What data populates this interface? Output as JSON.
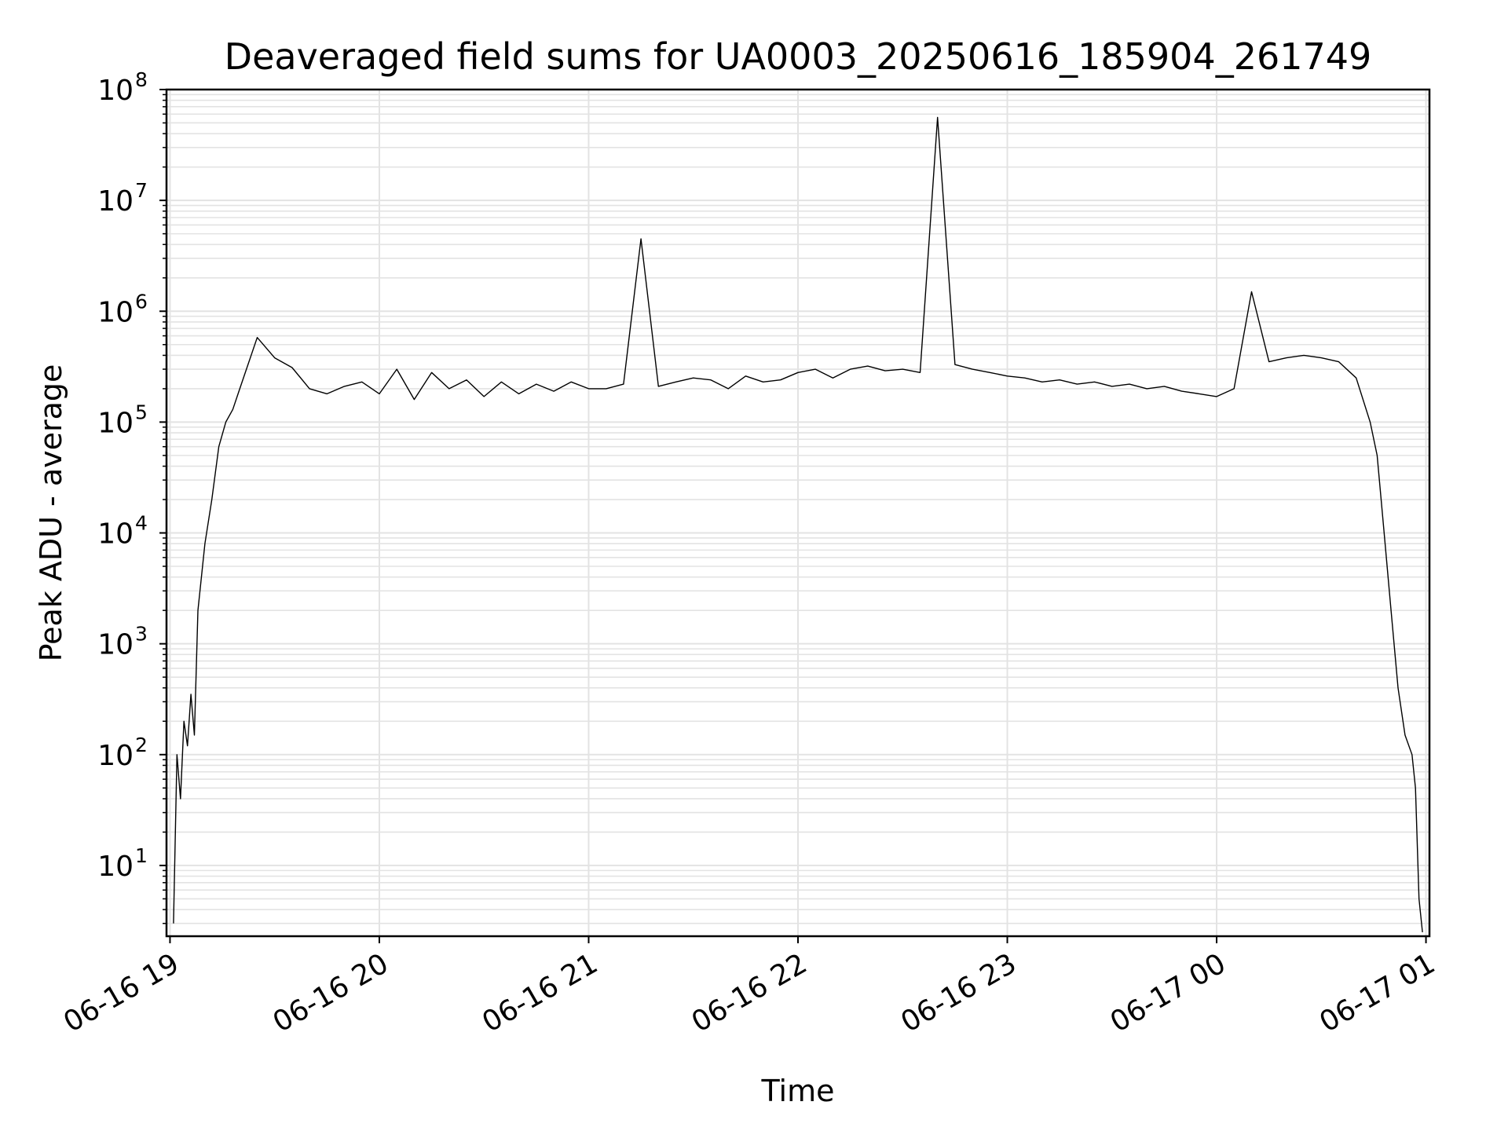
{
  "chart_data": {
    "type": "line",
    "title": "Deaveraged field sums for UA0003_20250616_185904_261749",
    "xlabel": "Time",
    "ylabel": "Peak ADU - average",
    "yscale": "log",
    "ylim": [
      2.3,
      100000000
    ],
    "xlim": [
      "2025-06-16 18:59:00",
      "2025-06-17 01:01:00"
    ],
    "x_ticks": [
      {
        "label": "06-16 19",
        "time": "2025-06-16 19:00"
      },
      {
        "label": "06-16 20",
        "time": "2025-06-16 20:00"
      },
      {
        "label": "06-16 21",
        "time": "2025-06-16 21:00"
      },
      {
        "label": "06-16 22",
        "time": "2025-06-16 22:00"
      },
      {
        "label": "06-16 23",
        "time": "2025-06-16 23:00"
      },
      {
        "label": "06-17 00",
        "time": "2025-06-17 00:00"
      },
      {
        "label": "06-17 01",
        "time": "2025-06-17 01:00"
      }
    ],
    "y_ticks": [
      {
        "base": "10",
        "exp": "1",
        "value": 10
      },
      {
        "base": "10",
        "exp": "2",
        "value": 100
      },
      {
        "base": "10",
        "exp": "3",
        "value": 1000
      },
      {
        "base": "10",
        "exp": "4",
        "value": 10000
      },
      {
        "base": "10",
        "exp": "5",
        "value": 100000
      },
      {
        "base": "10",
        "exp": "6",
        "value": 1000000
      },
      {
        "base": "10",
        "exp": "7",
        "value": 10000000
      },
      {
        "base": "10",
        "exp": "8",
        "value": 100000000
      }
    ],
    "grid": true,
    "series_color": "#000000",
    "grid_color": "#e3e3e3",
    "series": [
      {
        "x": [
          "2025-06-16 19:01",
          "2025-06-16 19:02",
          "2025-06-16 19:03",
          "2025-06-16 19:04",
          "2025-06-16 19:05",
          "2025-06-16 19:06",
          "2025-06-16 19:07",
          "2025-06-16 19:08",
          "2025-06-16 19:10",
          "2025-06-16 19:12",
          "2025-06-16 19:14",
          "2025-06-16 19:16",
          "2025-06-16 19:18",
          "2025-06-16 19:20",
          "2025-06-16 19:25",
          "2025-06-16 19:30",
          "2025-06-16 19:35",
          "2025-06-16 19:40",
          "2025-06-16 19:45",
          "2025-06-16 19:50",
          "2025-06-16 19:55",
          "2025-06-16 20:00",
          "2025-06-16 20:05",
          "2025-06-16 20:10",
          "2025-06-16 20:15",
          "2025-06-16 20:20",
          "2025-06-16 20:25",
          "2025-06-16 20:30",
          "2025-06-16 20:35",
          "2025-06-16 20:40",
          "2025-06-16 20:45",
          "2025-06-16 20:50",
          "2025-06-16 20:55",
          "2025-06-16 21:00",
          "2025-06-16 21:05",
          "2025-06-16 21:10",
          "2025-06-16 21:15",
          "2025-06-16 21:20",
          "2025-06-16 21:25",
          "2025-06-16 21:30",
          "2025-06-16 21:35",
          "2025-06-16 21:40",
          "2025-06-16 21:45",
          "2025-06-16 21:50",
          "2025-06-16 21:55",
          "2025-06-16 22:00",
          "2025-06-16 22:05",
          "2025-06-16 22:10",
          "2025-06-16 22:15",
          "2025-06-16 22:20",
          "2025-06-16 22:25",
          "2025-06-16 22:30",
          "2025-06-16 22:35",
          "2025-06-16 22:40",
          "2025-06-16 22:45",
          "2025-06-16 22:50",
          "2025-06-16 22:55",
          "2025-06-16 23:00",
          "2025-06-16 23:05",
          "2025-06-16 23:10",
          "2025-06-16 23:15",
          "2025-06-16 23:20",
          "2025-06-16 23:25",
          "2025-06-16 23:30",
          "2025-06-16 23:35",
          "2025-06-16 23:40",
          "2025-06-16 23:45",
          "2025-06-16 23:50",
          "2025-06-16 23:55",
          "2025-06-17 00:00",
          "2025-06-17 00:05",
          "2025-06-17 00:10",
          "2025-06-17 00:15",
          "2025-06-17 00:20",
          "2025-06-17 00:25",
          "2025-06-17 00:30",
          "2025-06-17 00:35",
          "2025-06-17 00:40",
          "2025-06-17 00:44",
          "2025-06-17 00:46",
          "2025-06-17 00:48",
          "2025-06-17 00:50",
          "2025-06-17 00:52",
          "2025-06-17 00:54",
          "2025-06-17 00:56",
          "2025-06-17 00:57",
          "2025-06-17 00:58",
          "2025-06-17 00:59"
        ],
        "y": [
          3,
          100,
          40,
          200,
          120,
          350,
          150,
          2000,
          8000,
          20000,
          60000,
          100000,
          130000,
          200000,
          580000,
          380000,
          310000,
          200000,
          180000,
          210000,
          230000,
          180000,
          300000,
          160000,
          280000,
          200000,
          240000,
          170000,
          230000,
          180000,
          220000,
          190000,
          230000,
          200000,
          200000,
          220000,
          4500000,
          210000,
          230000,
          250000,
          240000,
          200000,
          260000,
          230000,
          240000,
          280000,
          300000,
          250000,
          300000,
          320000,
          290000,
          300000,
          280000,
          56000000,
          330000,
          300000,
          280000,
          260000,
          250000,
          230000,
          240000,
          220000,
          230000,
          210000,
          220000,
          200000,
          210000,
          190000,
          180000,
          170000,
          200000,
          1500000,
          350000,
          380000,
          400000,
          380000,
          350000,
          250000,
          100000,
          50000,
          10000,
          2000,
          400,
          150,
          100,
          50,
          5,
          2.5
        ]
      }
    ]
  }
}
